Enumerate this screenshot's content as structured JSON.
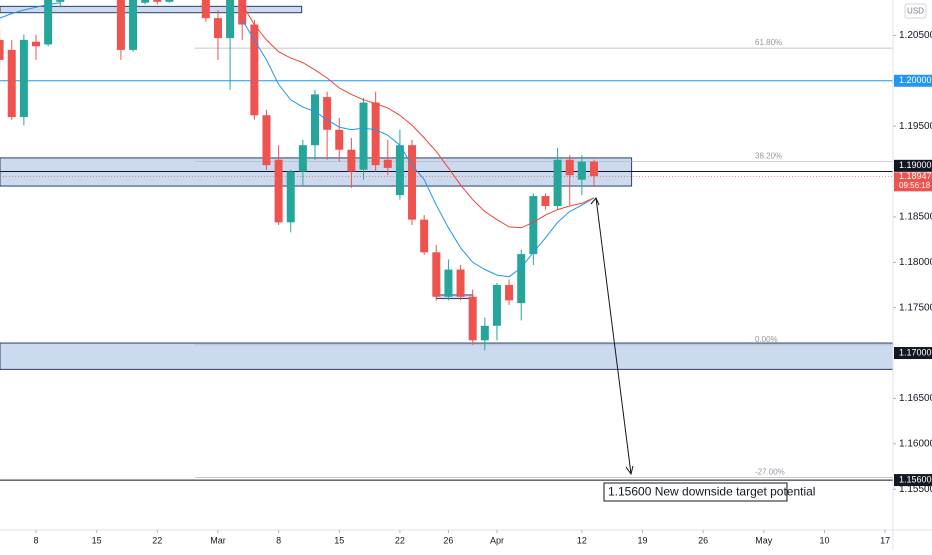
{
  "chart_data": {
    "type": "candlestick",
    "currency": "USD",
    "xlim": [
      -2.968,
      70.65
    ],
    "ylim": [
      1.1505,
      1.2089
    ],
    "xticks": [
      {
        "value": 0,
        "label": "8"
      },
      {
        "value": 5,
        "label": "15"
      },
      {
        "value": 10,
        "label": "22"
      },
      {
        "value": 15,
        "label": "Mar"
      },
      {
        "value": 20,
        "label": "8"
      },
      {
        "value": 25,
        "label": "15"
      },
      {
        "value": 30,
        "label": "22"
      },
      {
        "value": 34,
        "label": "26"
      },
      {
        "value": 38,
        "label": "Apr"
      },
      {
        "value": 45,
        "label": "12"
      },
      {
        "value": 50,
        "label": "19"
      },
      {
        "value": 55,
        "label": "26"
      },
      {
        "value": 60,
        "label": "May"
      },
      {
        "value": 65,
        "label": "10"
      },
      {
        "value": 70,
        "label": "17"
      }
    ],
    "yticks": [
      {
        "value": 1.205,
        "label": "1.20500"
      },
      {
        "value": 1.195,
        "label": "1.19500"
      },
      {
        "value": 1.185,
        "label": "1.18500"
      },
      {
        "value": 1.18,
        "label": "1.18000"
      },
      {
        "value": 1.175,
        "label": "1.17500"
      },
      {
        "value": 1.165,
        "label": "1.16500"
      },
      {
        "value": 1.16,
        "label": "1.16000"
      },
      {
        "value": 1.155,
        "label": "1.15500"
      }
    ],
    "price_lines": [
      {
        "value": 1.2,
        "label": "1.20000",
        "color": "#2196f3",
        "line": true
      },
      {
        "value": 1.19,
        "label": "1.19000",
        "color": "#131722",
        "line": true
      },
      {
        "value": 1.17,
        "label": "1.17000",
        "color": "#131722",
        "line": false
      },
      {
        "value": 1.156,
        "label": "1.15600",
        "color": "#131722",
        "line": true
      }
    ],
    "last_price": {
      "value": 1.18947,
      "countdown": "09:56:18",
      "color": "#ef5350"
    },
    "up_color": "#26a69a",
    "down_color": "#ef5350",
    "x": [
      -3,
      -2,
      -1,
      0,
      1,
      2,
      3,
      4,
      5,
      6,
      7,
      8,
      9,
      10,
      11,
      12,
      13,
      14,
      15,
      16,
      17,
      18,
      19,
      20,
      21,
      22,
      23,
      24,
      25,
      26,
      27,
      28,
      29,
      30,
      31,
      32,
      33,
      34,
      35,
      36,
      37,
      38,
      39,
      40,
      41,
      42,
      43,
      44,
      45,
      46
    ],
    "open": [
      1.2045,
      1.2034,
      1.196,
      1.2043,
      1.204,
      1.2087,
      1.21,
      1.2111,
      1.21,
      1.2106,
      1.2095,
      1.2034,
      1.2086,
      1.2093,
      1.2087,
      1.21,
      1.2111,
      1.21,
      1.2069,
      1.2047,
      1.2089,
      1.2062,
      1.1962,
      1.1913,
      1.1844,
      1.19,
      1.1929,
      1.1982,
      1.1946,
      1.1924,
      1.1902,
      1.1976,
      1.1913,
      1.1874,
      1.1929,
      1.1847,
      1.1811,
      1.1762,
      1.1792,
      1.1762,
      1.1714,
      1.173,
      1.1775,
      1.1755,
      1.1809,
      1.1873,
      1.1862,
      1.1913,
      1.1891,
      1.1911
    ],
    "high": [
      1.2056,
      1.2045,
      1.2051,
      1.2051,
      1.2095,
      1.2106,
      1.2122,
      1.2122,
      1.2111,
      1.2111,
      1.21,
      1.21,
      1.21,
      1.21,
      1.2106,
      1.2122,
      1.2122,
      1.2106,
      1.2078,
      1.2095,
      1.2095,
      1.2067,
      1.1968,
      1.1929,
      1.1902,
      1.1935,
      1.199,
      1.1988,
      1.1959,
      1.1937,
      1.1981,
      1.1988,
      1.1935,
      1.1946,
      1.1935,
      1.1852,
      1.1819,
      1.1803,
      1.1797,
      1.177,
      1.1739,
      1.1777,
      1.1781,
      1.1814,
      1.1876,
      1.1876,
      1.1926,
      1.1918,
      1.1918,
      1.1913
    ],
    "low": [
      1.2012,
      1.1957,
      1.1951,
      1.2023,
      1.2038,
      1.2081,
      1.2095,
      1.2093,
      1.2095,
      1.2089,
      1.2023,
      1.2032,
      1.2084,
      1.2084,
      1.2086,
      1.2095,
      1.2095,
      1.2065,
      1.2023,
      1.199,
      1.2045,
      1.1957,
      1.1902,
      1.1841,
      1.1833,
      1.1885,
      1.1913,
      1.1913,
      1.1911,
      1.1882,
      1.1891,
      1.19,
      1.1896,
      1.1869,
      1.1841,
      1.1808,
      1.1758,
      1.1758,
      1.1758,
      1.1709,
      1.1703,
      1.1714,
      1.1753,
      1.1736,
      1.1797,
      1.1858,
      1.1858,
      1.1863,
      1.1874,
      1.1883
    ],
    "close": [
      1.2023,
      1.196,
      1.2045,
      1.2038,
      1.2089,
      1.21,
      1.2111,
      1.21,
      1.2106,
      1.2095,
      1.2034,
      1.2089,
      1.2093,
      1.2087,
      1.21,
      1.2111,
      1.21,
      1.2069,
      1.2047,
      1.2089,
      1.2062,
      1.1962,
      1.1907,
      1.1844,
      1.19,
      1.1929,
      1.1985,
      1.1946,
      1.1924,
      1.19,
      1.1976,
      1.1907,
      1.1904,
      1.1929,
      1.1847,
      1.1811,
      1.1762,
      1.1792,
      1.1762,
      1.1714,
      1.173,
      1.1775,
      1.1758,
      1.1809,
      1.1873,
      1.1862,
      1.1913,
      1.1896,
      1.1911,
      1.1895
    ],
    "lines": [
      {
        "color": "#2196f3",
        "values": [
          1.2069,
          1.2074,
          1.2078,
          1.2081,
          1.2084,
          1.2086,
          null,
          null,
          null,
          null,
          null,
          null,
          null,
          null,
          null,
          null,
          null,
          null,
          null,
          null,
          1.2067,
          1.2045,
          1.2023,
          1.1996,
          1.1979,
          1.1971,
          1.1966,
          1.1957,
          1.1949,
          1.1946,
          1.1948,
          1.1946,
          1.194,
          1.1929,
          1.1907,
          1.1891,
          1.1863,
          1.1838,
          1.1816,
          1.18,
          1.1792,
          1.1786,
          1.1784,
          1.1794,
          1.1811,
          1.1827,
          1.1844,
          1.1856,
          1.1863,
          1.1871
        ]
      },
      {
        "color": "#f44336",
        "values": [
          null,
          null,
          null,
          null,
          null,
          null,
          null,
          null,
          null,
          null,
          null,
          null,
          null,
          null,
          null,
          null,
          null,
          null,
          null,
          null,
          1.2084,
          1.2062,
          1.2045,
          1.2032,
          1.2025,
          1.202,
          1.2012,
          1.2003,
          1.1992,
          1.1985,
          1.1979,
          1.1975,
          1.197,
          1.1962,
          1.1951,
          1.1937,
          1.1922,
          1.1904,
          1.1885,
          1.1869,
          1.1856,
          1.1847,
          1.1839,
          1.1838,
          1.1844,
          1.1852,
          1.1858,
          1.1862,
          1.1865,
          1.1871
        ]
      }
    ],
    "zones": [
      {
        "from": 1.2075,
        "to": 1.2082,
        "start": -2.968,
        "end": 21.9
      },
      {
        "from": 1.1884,
        "to": 1.1915,
        "start": -2.968,
        "end": 49.1
      },
      {
        "from": 1.1682,
        "to": 1.1711,
        "start": -2.968,
        "end": 70.65
      },
      {
        "from": 1.176,
        "to": 1.1764,
        "start": 33,
        "end": 36
      }
    ],
    "fib_levels": [
      {
        "value": 1.2036,
        "label": "61.80%"
      },
      {
        "value": 1.1911,
        "label": "38.20%"
      },
      {
        "value": 1.1709,
        "label": "0.00%"
      },
      {
        "value": 1.1563,
        "label": "-27.00%"
      }
    ],
    "fib_start": 13.1,
    "annotation": "1.15600 New downside target potential"
  }
}
